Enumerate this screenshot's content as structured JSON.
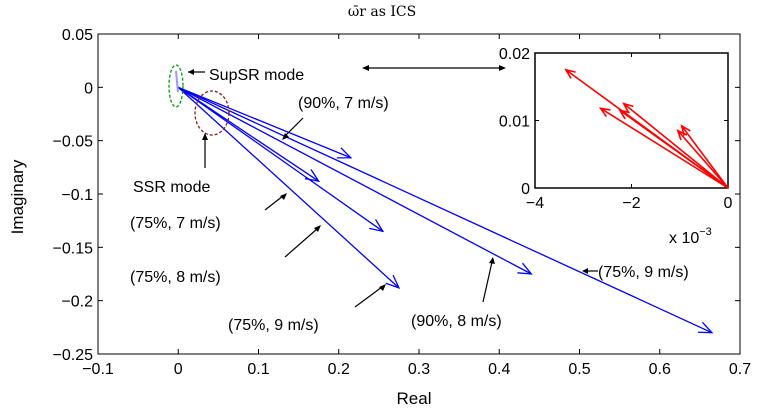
{
  "chart_data": [
    {
      "type": "vector",
      "title": "ω̄r as ICS",
      "xlabel": "Real",
      "ylabel": "Imaginary",
      "xlim": [
        -0.1,
        0.7
      ],
      "ylim": [
        -0.25,
        0.05
      ],
      "xticks": [
        "−0.1",
        "0",
        "0.1",
        "0.2",
        "0.3",
        "0.4",
        "0.5",
        "0.6",
        "0.7"
      ],
      "yticks": [
        "0.05",
        "0",
        "−0.05",
        "−0.1",
        "−0.15",
        "−0.2",
        "−0.25"
      ],
      "series_color": "#0000ff",
      "vectors": [
        {
          "from": [
            0,
            0
          ],
          "to": [
            0.175,
            -0.088
          ]
        },
        {
          "from": [
            0,
            0
          ],
          "to": [
            0.275,
            -0.188
          ]
        },
        {
          "from": [
            0,
            0
          ],
          "to": [
            0.255,
            -0.135
          ]
        },
        {
          "from": [
            0,
            0
          ],
          "to": [
            0.44,
            -0.175
          ]
        },
        {
          "from": [
            0,
            0
          ],
          "to": [
            0.665,
            -0.23
          ]
        },
        {
          "from": [
            0,
            0
          ],
          "to": [
            0.215,
            -0.066
          ]
        }
      ],
      "annotations": [
        {
          "text": "SupSR mode"
        },
        {
          "text": "SSR mode"
        },
        {
          "text": "(90%, 7 m/s)"
        },
        {
          "text": "(75%, 7 m/s)"
        },
        {
          "text": "(75%, 8 m/s)"
        },
        {
          "text": "(75%, 9 m/s)"
        },
        {
          "text": "(90%, 8 m/s)"
        },
        {
          "text": "(75%, 9 m/s)"
        }
      ],
      "mode_markers": [
        {
          "name": "SupSR",
          "color": "#009900",
          "center": [
            -0.003,
            0.007
          ]
        },
        {
          "name": "SSR",
          "color": "#8b1a1a",
          "center": [
            0.036,
            -0.015
          ]
        }
      ]
    },
    {
      "type": "vector",
      "title": "",
      "xlim": [
        -0.005,
        0
      ],
      "ylim": [
        0,
        0.02
      ],
      "xticks": [
        "−4",
        "−2",
        "0"
      ],
      "yticks": [
        "0.02",
        "0.01",
        "0"
      ],
      "x_scale_note": "x 10",
      "x_scale_exp": "−3",
      "series_color": "#ff0000",
      "vectors": [
        {
          "from": [
            0,
            0
          ],
          "to": [
            -0.0042,
            0.0175
          ]
        },
        {
          "from": [
            0,
            0
          ],
          "to": [
            -0.0033,
            0.0118
          ]
        },
        {
          "from": [
            0,
            0
          ],
          "to": [
            -0.0028,
            0.0115
          ]
        },
        {
          "from": [
            0,
            0
          ],
          "to": [
            -0.0027,
            0.0125
          ]
        },
        {
          "from": [
            0,
            0
          ],
          "to": [
            -0.0013,
            0.0085
          ]
        },
        {
          "from": [
            0,
            0
          ],
          "to": [
            -0.0012,
            0.0092
          ]
        }
      ]
    }
  ]
}
